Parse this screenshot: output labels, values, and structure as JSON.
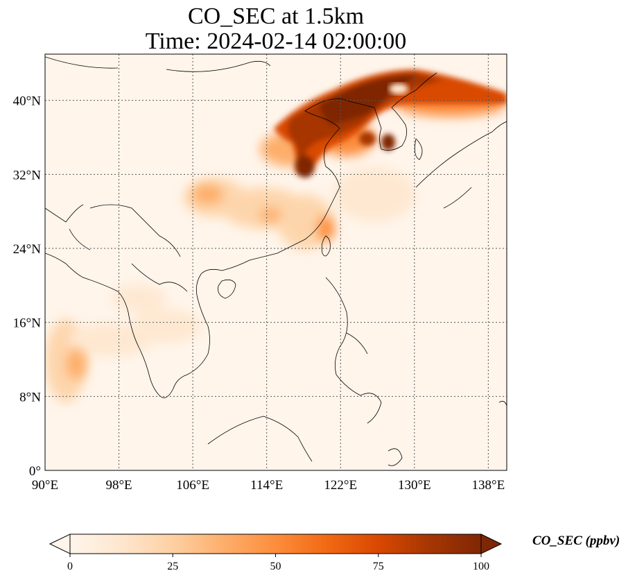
{
  "title": {
    "line1": "CO_SEC at 1.5km",
    "line2": "Time: 2024-02-14 02:00:00"
  },
  "map": {
    "lon_range": [
      90,
      140
    ],
    "lat_range": [
      0,
      45
    ],
    "lon_ticks": [
      {
        "value": 90,
        "label": "90°E"
      },
      {
        "value": 98,
        "label": "98°E"
      },
      {
        "value": 106,
        "label": "106°E"
      },
      {
        "value": 114,
        "label": "114°E"
      },
      {
        "value": 122,
        "label": "122°E"
      },
      {
        "value": 130,
        "label": "130°E"
      },
      {
        "value": 138,
        "label": "138°E"
      }
    ],
    "lat_ticks": [
      {
        "value": 0,
        "label": "0°"
      },
      {
        "value": 8,
        "label": "8°N"
      },
      {
        "value": 16,
        "label": "16°N"
      },
      {
        "value": 24,
        "label": "24°N"
      },
      {
        "value": 32,
        "label": "32°N"
      },
      {
        "value": 40,
        "label": "40°N"
      }
    ],
    "gridlines": true,
    "background_color": "#fff5eb",
    "coastline_color": "#000000"
  },
  "colorbar": {
    "label": "CO_SEC (ppbv)",
    "ticks": [
      "0",
      "25",
      "50",
      "75",
      "100"
    ],
    "range": [
      0,
      100
    ],
    "extend": "both",
    "colors": [
      "#fff5eb",
      "#fee6ce",
      "#fdd0a2",
      "#fdae6b",
      "#fd8d3c",
      "#f16913",
      "#d94801",
      "#a63603",
      "#7f2704"
    ]
  }
}
